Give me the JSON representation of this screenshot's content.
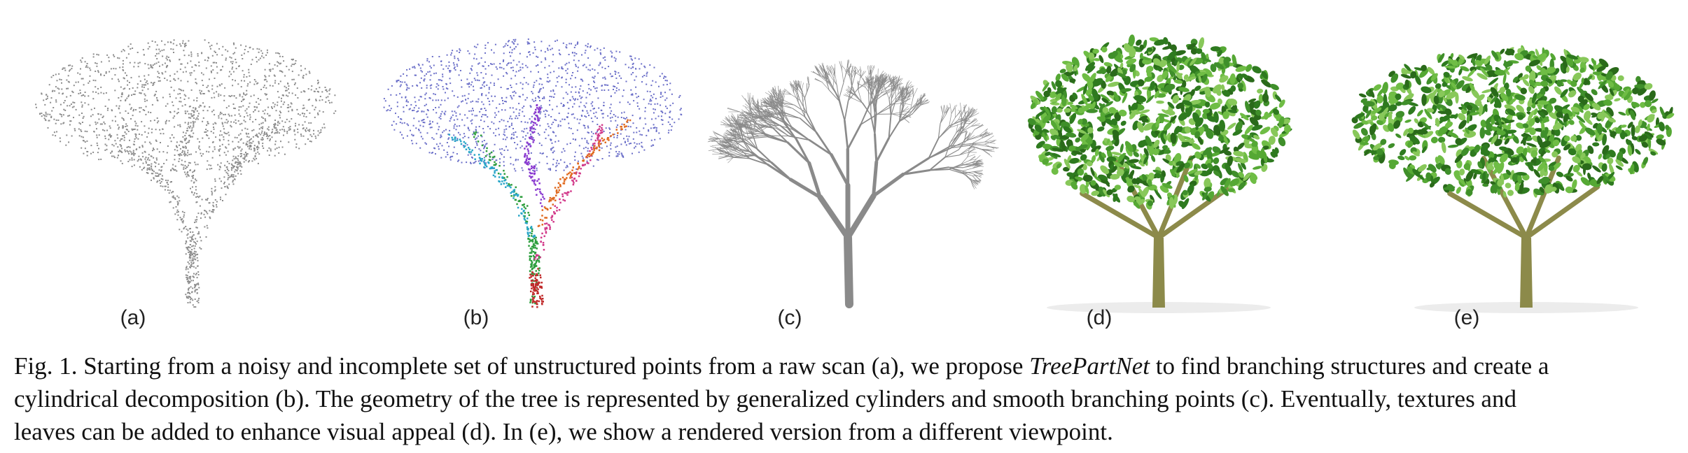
{
  "figure": {
    "panels": [
      {
        "id": "a",
        "label": "(a)"
      },
      {
        "id": "b",
        "label": "(b)"
      },
      {
        "id": "c",
        "label": "(c)"
      },
      {
        "id": "d",
        "label": "(d)"
      },
      {
        "id": "e",
        "label": "(e)"
      }
    ],
    "colors": {
      "points_gray": "#8c8c8c",
      "segment_blue": "#6a6ec8",
      "branch_gray": "#8a8a8a",
      "leaf_green": "#3f8f2a",
      "trunk_olive": "#8c8a4a"
    }
  },
  "caption": {
    "line1_prefix": "Fig. 1.  Starting from a noisy and incomplete set of unstructured points from a raw scan (a), we propose ",
    "method_name": "TreePartNet",
    "line1_suffix": " to find branching structures and create a",
    "line2": "cylindrical decomposition (b). The geometry of the tree is represented by generalized cylinders and smooth branching points (c). Eventually, textures and",
    "line3": "leaves can be added to enhance visual appeal (d). In (e), we show a rendered version from a different viewpoint."
  }
}
